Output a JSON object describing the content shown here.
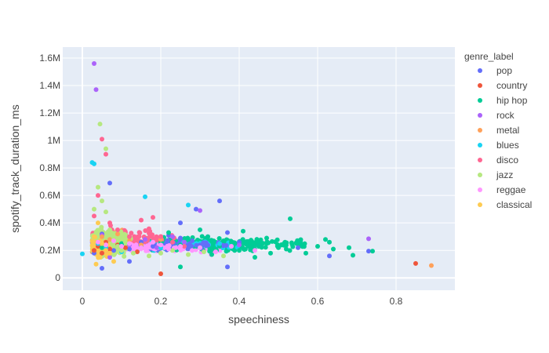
{
  "chart_data": {
    "type": "scatter",
    "title": "",
    "xlabel": "speechiness",
    "ylabel": "spotify_track_duration_ms",
    "xlim": [
      -0.05,
      0.95
    ],
    "ylim": [
      -90000,
      1680000
    ],
    "x_ticks": [
      0,
      0.2,
      0.4,
      0.6,
      0.8
    ],
    "x_tick_labels": [
      "0",
      "0.2",
      "0.4",
      "0.6",
      "0.8"
    ],
    "y_ticks": [
      0,
      200000,
      400000,
      600000,
      800000,
      1000000,
      1200000,
      1400000,
      1600000
    ],
    "y_tick_labels": [
      "0",
      "0.2M",
      "0.4M",
      "0.6M",
      "0.8M",
      "1M",
      "1.2M",
      "1.4M",
      "1.6M"
    ],
    "grid": true,
    "legend": {
      "title": "genre_label",
      "placement": "right"
    },
    "background": "#e5ecf6",
    "series": [
      {
        "name": "pop",
        "color": "#636efa",
        "points": [
          [
            0.03,
            180000
          ],
          [
            0.04,
            250000
          ],
          [
            0.05,
            320000
          ],
          [
            0.06,
            220000
          ],
          [
            0.08,
            200000
          ],
          [
            0.1,
            240000
          ],
          [
            0.12,
            210000
          ],
          [
            0.15,
            260000
          ],
          [
            0.18,
            230000
          ],
          [
            0.2,
            250000
          ],
          [
            0.22,
            310000
          ],
          [
            0.25,
            290000
          ],
          [
            0.28,
            270000
          ],
          [
            0.3,
            240000
          ],
          [
            0.32,
            300000
          ],
          [
            0.35,
            560000
          ],
          [
            0.37,
            330000
          ],
          [
            0.4,
            260000
          ],
          [
            0.45,
            230000
          ],
          [
            0.55,
            220000
          ],
          [
            0.63,
            160000
          ],
          [
            0.73,
            195000
          ],
          [
            0.07,
            690000
          ],
          [
            0.05,
            70000
          ],
          [
            0.12,
            120000
          ],
          [
            0.25,
            400000
          ],
          [
            0.29,
            500000
          ],
          [
            0.37,
            80000
          ]
        ]
      },
      {
        "name": "country",
        "color": "#ef553b",
        "points": [
          [
            0.03,
            200000
          ],
          [
            0.04,
            230000
          ],
          [
            0.05,
            180000
          ],
          [
            0.06,
            260000
          ],
          [
            0.07,
            210000
          ],
          [
            0.09,
            240000
          ],
          [
            0.11,
            220000
          ],
          [
            0.14,
            190000
          ],
          [
            0.2,
            30000
          ],
          [
            0.85,
            105000
          ]
        ]
      },
      {
        "name": "hip hop",
        "color": "#00cc96",
        "points": [
          [
            0.05,
            220000
          ],
          [
            0.1,
            250000
          ],
          [
            0.15,
            230000
          ],
          [
            0.2,
            260000
          ],
          [
            0.22,
            330000
          ],
          [
            0.25,
            240000
          ],
          [
            0.27,
            280000
          ],
          [
            0.3,
            220000
          ],
          [
            0.32,
            300000
          ],
          [
            0.33,
            170000
          ],
          [
            0.35,
            230000
          ],
          [
            0.36,
            270000
          ],
          [
            0.38,
            260000
          ],
          [
            0.4,
            200000
          ],
          [
            0.41,
            340000
          ],
          [
            0.43,
            250000
          ],
          [
            0.45,
            230000
          ],
          [
            0.47,
            290000
          ],
          [
            0.5,
            220000
          ],
          [
            0.52,
            210000
          ],
          [
            0.53,
            430000
          ],
          [
            0.55,
            260000
          ],
          [
            0.57,
            180000
          ],
          [
            0.6,
            230000
          ],
          [
            0.62,
            280000
          ],
          [
            0.63,
            260000
          ],
          [
            0.64,
            210000
          ],
          [
            0.68,
            220000
          ],
          [
            0.69,
            165000
          ],
          [
            0.74,
            195000
          ],
          [
            0.25,
            80000
          ],
          [
            0.3,
            350000
          ],
          [
            0.44,
            150000
          ],
          [
            0.48,
            180000
          ]
        ]
      },
      {
        "name": "rock",
        "color": "#ab63fa",
        "points": [
          [
            0.03,
            1560000
          ],
          [
            0.035,
            1370000
          ],
          [
            0.04,
            250000
          ],
          [
            0.05,
            310000
          ],
          [
            0.06,
            200000
          ],
          [
            0.07,
            150000
          ],
          [
            0.09,
            230000
          ],
          [
            0.12,
            240000
          ],
          [
            0.16,
            280000
          ],
          [
            0.19,
            220000
          ],
          [
            0.23,
            300000
          ],
          [
            0.26,
            260000
          ],
          [
            0.3,
            490000
          ],
          [
            0.4,
            240000
          ],
          [
            0.73,
            285000
          ]
        ]
      },
      {
        "name": "metal",
        "color": "#ffa15a",
        "points": [
          [
            0.04,
            260000
          ],
          [
            0.05,
            300000
          ],
          [
            0.06,
            240000
          ],
          [
            0.07,
            280000
          ],
          [
            0.09,
            320000
          ],
          [
            0.12,
            270000
          ],
          [
            0.15,
            240000
          ],
          [
            0.2,
            280000
          ],
          [
            0.89,
            90000
          ]
        ]
      },
      {
        "name": "blues",
        "color": "#19d3f3",
        "points": [
          [
            0.0,
            175000
          ],
          [
            0.025,
            840000
          ],
          [
            0.03,
            830000
          ],
          [
            0.04,
            250000
          ],
          [
            0.06,
            220000
          ],
          [
            0.1,
            190000
          ],
          [
            0.16,
            590000
          ],
          [
            0.2,
            220000
          ],
          [
            0.27,
            530000
          ],
          [
            0.35,
            250000
          ]
        ]
      },
      {
        "name": "disco",
        "color": "#ff6692",
        "points": [
          [
            0.03,
            450000
          ],
          [
            0.05,
            1010000
          ],
          [
            0.06,
            900000
          ],
          [
            0.04,
            600000
          ],
          [
            0.07,
            400000
          ],
          [
            0.09,
            350000
          ],
          [
            0.12,
            300000
          ],
          [
            0.15,
            420000
          ],
          [
            0.18,
            440000
          ],
          [
            0.2,
            300000
          ],
          [
            0.23,
            260000
          ],
          [
            0.26,
            230000
          ]
        ]
      },
      {
        "name": "jazz",
        "color": "#b6e880",
        "points": [
          [
            0.03,
            500000
          ],
          [
            0.04,
            660000
          ],
          [
            0.045,
            1120000
          ],
          [
            0.06,
            940000
          ],
          [
            0.05,
            560000
          ],
          [
            0.06,
            480000
          ],
          [
            0.07,
            350000
          ],
          [
            0.08,
            280000
          ],
          [
            0.09,
            230000
          ],
          [
            0.1,
            200000
          ],
          [
            0.11,
            260000
          ],
          [
            0.13,
            180000
          ],
          [
            0.15,
            220000
          ],
          [
            0.17,
            160000
          ],
          [
            0.2,
            180000
          ],
          [
            0.23,
            200000
          ],
          [
            0.27,
            170000
          ],
          [
            0.31,
            190000
          ],
          [
            0.36,
            160000
          ]
        ]
      },
      {
        "name": "reggae",
        "color": "#ff97ff",
        "points": [
          [
            0.04,
            260000
          ],
          [
            0.06,
            240000
          ],
          [
            0.08,
            270000
          ],
          [
            0.1,
            230000
          ],
          [
            0.12,
            250000
          ],
          [
            0.15,
            220000
          ],
          [
            0.18,
            260000
          ],
          [
            0.2,
            240000
          ],
          [
            0.22,
            210000
          ],
          [
            0.25,
            230000
          ],
          [
            0.28,
            200000
          ],
          [
            0.3,
            220000
          ],
          [
            0.34,
            190000
          ],
          [
            0.38,
            230000
          ],
          [
            0.44,
            200000
          ]
        ]
      },
      {
        "name": "classical",
        "color": "#fecb52",
        "points": [
          [
            0.03,
            300000
          ],
          [
            0.04,
            400000
          ],
          [
            0.05,
            250000
          ],
          [
            0.06,
            200000
          ],
          [
            0.045,
            150000
          ],
          [
            0.07,
            180000
          ],
          [
            0.08,
            120000
          ],
          [
            0.035,
            100000
          ]
        ]
      }
    ]
  }
}
